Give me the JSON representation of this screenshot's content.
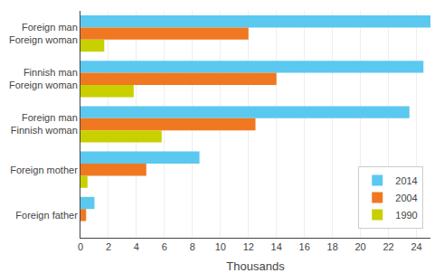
{
  "chart_data": {
    "type": "bar",
    "orientation": "horizontal",
    "categories": [
      "Foreign man\nForeign woman",
      "Finnish man\nForeign woman",
      "Foreign man\nFinnish woman",
      "Foreign mother",
      "Foreign father"
    ],
    "series": [
      {
        "name": "2014",
        "color": "#5bc8f0",
        "values": [
          25.0,
          24.5,
          23.5,
          8.5,
          1.0
        ]
      },
      {
        "name": "2004",
        "color": "#f07820",
        "values": [
          12.0,
          14.0,
          12.5,
          4.7,
          0.4
        ]
      },
      {
        "name": "1990",
        "color": "#c8d000",
        "values": [
          1.7,
          3.8,
          5.8,
          0.5,
          0.0
        ]
      }
    ],
    "xlabel": "Thousands",
    "xlim": [
      0,
      25
    ],
    "xticks": [
      0,
      2,
      4,
      6,
      8,
      10,
      12,
      14,
      16,
      18,
      20,
      22,
      24
    ],
    "grid": "x",
    "legend": "lower right"
  }
}
